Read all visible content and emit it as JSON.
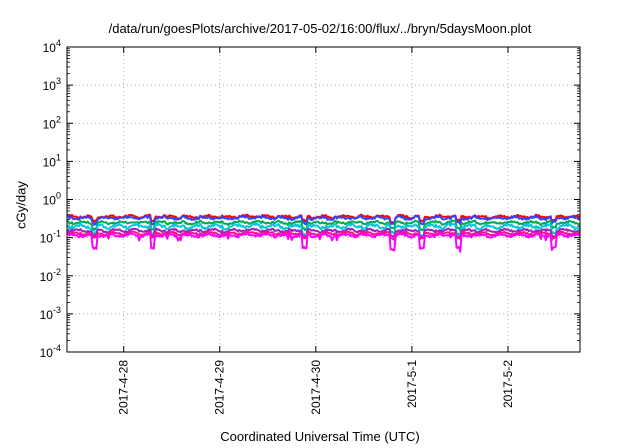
{
  "chart_data": {
    "type": "line",
    "title": "/data/run/goesPlots/archive/2017-05-02/16:00/flux/../bryn/5daysMoon.plot",
    "xlabel": "Coordinated Universal Time (UTC)",
    "ylabel": "cGy/day",
    "y_scale": "log",
    "ylim_exp": [
      -4,
      4
    ],
    "y_tick_exponents": [
      -4,
      -3,
      -2,
      -1,
      0,
      1,
      2,
      3,
      4
    ],
    "x_range_days": [
      -0.59,
      4.75
    ],
    "x_ticks": [
      {
        "label": "2017-4-28",
        "day": 0
      },
      {
        "label": "2017-4-29",
        "day": 1
      },
      {
        "label": "2017-4-30",
        "day": 2
      },
      {
        "label": "2017-5-1",
        "day": 3
      },
      {
        "label": "2017-5-2",
        "day": 4
      }
    ],
    "grid": true,
    "dip_days": [
      -0.3,
      0.3,
      1.88,
      2.8,
      3.1,
      3.48,
      4.48
    ],
    "series": [
      {
        "color": "#ff0000",
        "base": 0.36,
        "amp": 0.035,
        "dip": 0.75
      },
      {
        "color": "#3344ff",
        "base": 0.33,
        "amp": 0.035,
        "dip": 0.72
      },
      {
        "color": "#00aa55",
        "base": 0.25,
        "amp": 0.025,
        "dip": 0.7
      },
      {
        "color": "#00c8d8",
        "base": 0.2,
        "amp": 0.03,
        "dip": 0.65
      },
      {
        "color": "#a020c0",
        "base": 0.155,
        "amp": 0.015,
        "dip": 0.7
      },
      {
        "color": "#ff1090",
        "base": 0.13,
        "amp": 0.012,
        "dip": 0.75
      },
      {
        "color": "#ff00ff",
        "base": 0.115,
        "amp": 0.012,
        "dip": 0.45
      }
    ]
  }
}
